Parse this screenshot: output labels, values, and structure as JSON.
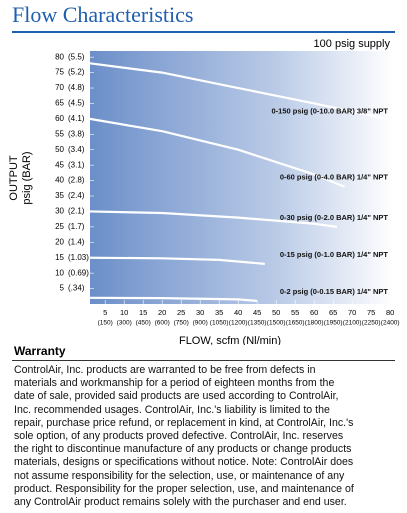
{
  "header": {
    "title": "Flow Characteristics"
  },
  "chart_data": {
    "type": "line",
    "subtitle": "100 psig supply",
    "ylabel_lines": [
      "OUTPUT",
      "psig (BAR)"
    ],
    "xlabel": "FLOW, scfm (Nl/min)",
    "xlim": [
      1,
      81
    ],
    "ylim": [
      0,
      82
    ],
    "xticks": [
      5,
      10,
      15,
      20,
      25,
      30,
      35,
      40,
      45,
      50,
      55,
      60,
      65,
      70,
      75,
      80
    ],
    "xtick_nl_labels": [
      "(150)",
      "(300)",
      "(450)",
      "(600)",
      "(750)",
      "(900)",
      "(1050)",
      "(1200)",
      "(1350)",
      "(1500)",
      "(1650)",
      "(1800)",
      "(1950)",
      "(2100)",
      "(2250)",
      "(2400)"
    ],
    "yticks": [
      5,
      10,
      15,
      20,
      25,
      30,
      35,
      40,
      45,
      50,
      55,
      60,
      65,
      70,
      75,
      80
    ],
    "ytick_bar_labels": [
      "(.34)",
      "(0.69)",
      "(1.03)",
      "(1.4)",
      "(1.7)",
      "(2.1)",
      "(2.4)",
      "(2.8)",
      "(3.1)",
      "(3.4)",
      "(3.8)",
      "(4.1)",
      "(4.5)",
      "(4.8)",
      "(5.2)",
      "(5.5)"
    ],
    "series": [
      {
        "name": "0-150 psig (0-10.0 BAR) 3/8\" NPT",
        "color": "#ffffff",
        "x": [
          1,
          20,
          40,
          60,
          81
        ],
        "values": [
          78,
          75,
          70,
          65,
          59.5
        ]
      },
      {
        "name": "0-60 psig (0-4.0 BAR) 1/4\" NPT",
        "color": "#ffffff",
        "x": [
          1,
          20,
          40,
          60,
          68
        ],
        "values": [
          60,
          56,
          50,
          42,
          38
        ]
      },
      {
        "name": "0-30 psig (0-2.0 BAR) 1/4\" NPT",
        "color": "#ffffff",
        "x": [
          1,
          20,
          40,
          60,
          66
        ],
        "values": [
          30,
          29.5,
          28,
          26,
          25
        ]
      },
      {
        "name": "0-15 psig (0-1.0 BAR) 1/4\" NPT",
        "color": "#ffffff",
        "x": [
          1,
          20,
          35,
          47
        ],
        "values": [
          15,
          14.8,
          14.3,
          13
        ]
      },
      {
        "name": "0-2 psig (0-0.15 BAR) 1/4\" NPT",
        "color": "#ffffff",
        "x": [
          1,
          20,
          40,
          45
        ],
        "values": [
          2,
          1.9,
          1.5,
          1
        ]
      }
    ]
  },
  "warranty": {
    "title": "Warranty",
    "lines": [
      "ControlAir, Inc. products are warranted to be free from defects in",
      "materials and workmanship for a period of eighteen months from the",
      "date of sale, provided said products are used according to ControlAir,",
      "Inc. recommended usages. ControlAir, Inc.'s liability is limited to the",
      "repair, purchase price refund, or replacement in kind, at ControlAir, Inc.'s",
      "sole option, of any products proved defective. ControlAir, Inc. reserves",
      "the right to discontinue manufacture of any products or change products",
      "materials, designs or specifications without notice. Note: ControlAir does",
      "not assume responsibility for the selection, use, or maintenance of any",
      "product. Responsibility for the proper selection, use, and maintenance of",
      "any ControlAir product remains solely with the purchaser and end user."
    ]
  }
}
